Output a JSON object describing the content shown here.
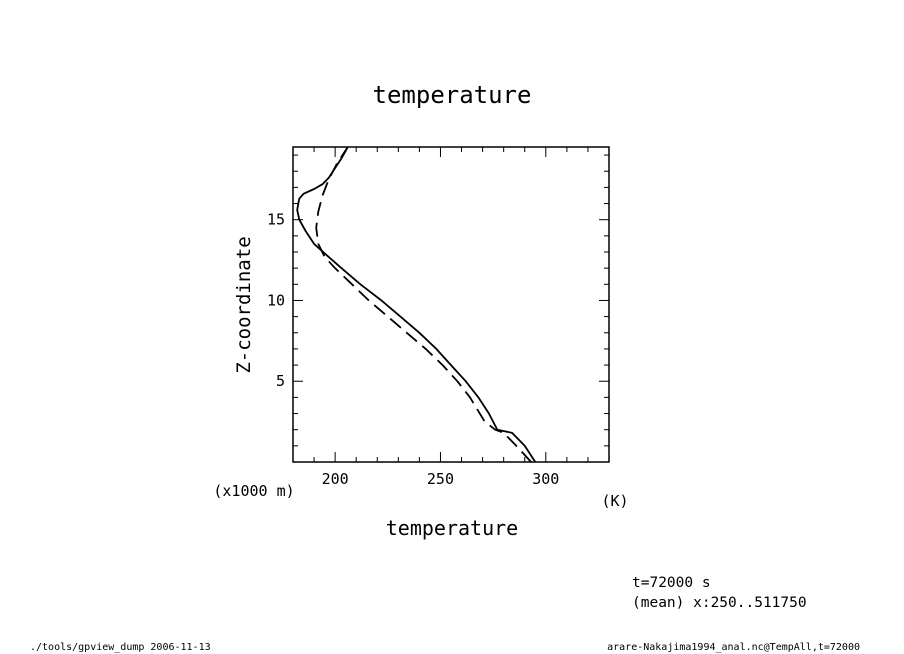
{
  "chart_data": {
    "type": "line",
    "title": "temperature",
    "xlabel": "temperature",
    "ylabel": "Z-coordinate",
    "x_unit": "(K)",
    "y_unit": "(x1000 m)",
    "xlim": [
      180,
      330
    ],
    "ylim": [
      0,
      19.5
    ],
    "x_ticks": [
      200,
      250,
      300
    ],
    "y_ticks": [
      5,
      10,
      15
    ],
    "x_minor_step": 10,
    "y_minor_step": 1,
    "grid": false,
    "series": [
      {
        "style": "solid",
        "points": [
          [
            295,
            0
          ],
          [
            290,
            1
          ],
          [
            284,
            1.8
          ],
          [
            277,
            2
          ],
          [
            273,
            3
          ],
          [
            268,
            4
          ],
          [
            262,
            5
          ],
          [
            255,
            6
          ],
          [
            248,
            7
          ],
          [
            240,
            8
          ],
          [
            231,
            9
          ],
          [
            222,
            10
          ],
          [
            212,
            11
          ],
          [
            203,
            12
          ],
          [
            196,
            12.8
          ],
          [
            190,
            13.5
          ],
          [
            186,
            14.3
          ],
          [
            183,
            15
          ],
          [
            182,
            15.6
          ],
          [
            182.5,
            16
          ],
          [
            183,
            16.3
          ],
          [
            185,
            16.6
          ],
          [
            190,
            16.9
          ],
          [
            194,
            17.2
          ],
          [
            197,
            17.6
          ],
          [
            200,
            18.2
          ],
          [
            203,
            18.8
          ],
          [
            206,
            19.5
          ]
        ]
      },
      {
        "style": "dashed",
        "points": [
          [
            293,
            0
          ],
          [
            286,
            1
          ],
          [
            280,
            1.8
          ],
          [
            276,
            2
          ],
          [
            271,
            2.5
          ],
          [
            264,
            4
          ],
          [
            258,
            5
          ],
          [
            251,
            6
          ],
          [
            243,
            7
          ],
          [
            234,
            8
          ],
          [
            225,
            9
          ],
          [
            216,
            10
          ],
          [
            208,
            11
          ],
          [
            200,
            12
          ],
          [
            195,
            12.7
          ],
          [
            192,
            13.5
          ],
          [
            191,
            14.5
          ],
          [
            192,
            15.5
          ],
          [
            194,
            16.5
          ],
          [
            197,
            17.5
          ],
          [
            201,
            18.5
          ],
          [
            206,
            19.5
          ]
        ]
      }
    ]
  },
  "annotations": {
    "time": "t=72000 s",
    "mean": "(mean) x:250..511750",
    "footer_left": "./tools/gpview_dump  2006-11-13",
    "footer_right": "arare-Nakajima1994_anal.nc@TempAll,t=72000"
  }
}
